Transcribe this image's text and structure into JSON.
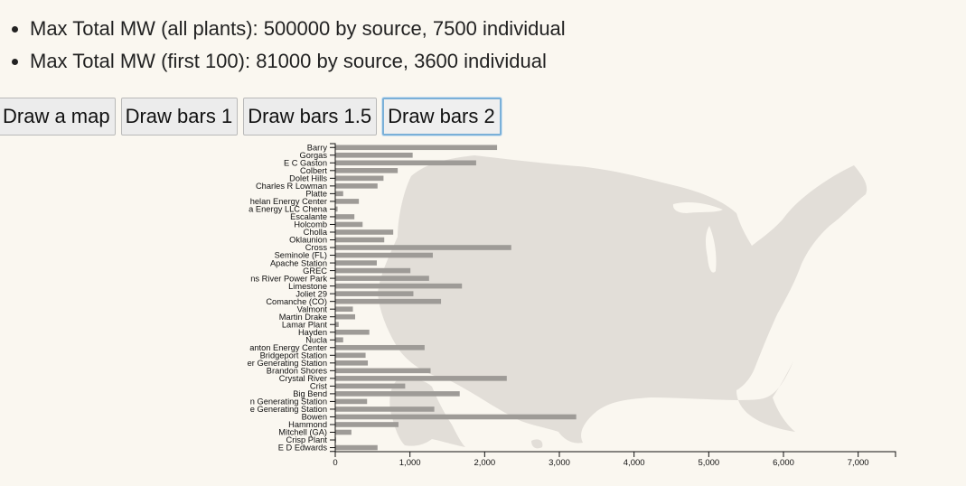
{
  "stats": [
    "Max Total MW (all plants): 500000 by source, 7500 individual",
    "Max Total MW (first 100): 81000 by source, 3600 individual"
  ],
  "buttons": [
    {
      "label": "Draw a map",
      "active": false
    },
    {
      "label": "Draw bars 1",
      "active": false
    },
    {
      "label": "Draw bars 1.5",
      "active": false
    },
    {
      "label": "Draw bars 2",
      "active": true
    }
  ],
  "map": {
    "fill_color": "#e2ded8"
  },
  "chart_data": {
    "type": "bar",
    "orientation": "horizontal",
    "bar_color": "#9e9b97",
    "xlim": [
      0,
      7500
    ],
    "xticks": [
      0,
      1000,
      2000,
      3000,
      4000,
      5000,
      6000,
      7000
    ],
    "xtick_labels": [
      "0",
      "1,000",
      "2,000",
      "3,000",
      "4,000",
      "5,000",
      "6,000",
      "7,000"
    ],
    "categories": [
      "Barry",
      "Gorgas",
      "E C Gaston",
      "Colbert",
      "Dolet Hills",
      "Charles R Lowman",
      "Platte",
      "Chelan Energy Center",
      "Aurora Energy LLC Chena",
      "Escalante",
      "Holcomb",
      "Cholla",
      "Oklaunion",
      "Cross",
      "Seminole (FL)",
      "Apache Station",
      "GREC",
      "Wisconsin River Power Park",
      "Limestone",
      "Joliet 29",
      "Comanche (CO)",
      "Valmont",
      "Martin Drake",
      "Lamar Plant",
      "Hayden",
      "Nucla",
      "Scranton Energy Center",
      "Bridgeport Station",
      "Killen Generating Station",
      "Brandon Shores",
      "Crystal River",
      "Crist",
      "Big Bend",
      "Nelson Generating Station",
      "Clifton Generating Station",
      "Bowen",
      "Hammond",
      "Mitchell (GA)",
      "Crisp Plant",
      "E D Edwards"
    ],
    "tick_labels": [
      "Barry",
      "Gorgas",
      "E C Gaston",
      "Colbert",
      "Dolet Hills",
      "Charles R Lowman",
      "Platte",
      "helan Energy Center",
      "a Energy LLC Chena",
      "Escalante",
      "Holcomb",
      "Cholla",
      "Oklaunion",
      "Cross",
      "Seminole (FL)",
      "Apache Station",
      "GREC",
      "ns River Power Park",
      "Limestone",
      "Joliet 29",
      "Comanche (CO)",
      "Valmont",
      "Martin Drake",
      "Lamar Plant",
      "Hayden",
      "Nucla",
      "anton Energy Center",
      "Bridgeport Station",
      "er Generating Station",
      "Brandon Shores",
      "Crystal River",
      "Crist",
      "Big Bend",
      "n Generating Station",
      "e Generating Station",
      "Bowen",
      "Hammond",
      "Mitchell (GA)",
      "Crisp Plant",
      "E D Edwards"
    ],
    "values": [
      2160,
      1030,
      1880,
      830,
      640,
      560,
      100,
      310,
      25,
      250,
      360,
      770,
      650,
      2350,
      1300,
      550,
      1000,
      1250,
      1690,
      1040,
      1410,
      230,
      260,
      40,
      450,
      100,
      1190,
      400,
      430,
      1270,
      2290,
      930,
      1660,
      420,
      1320,
      3220,
      840,
      210,
      5,
      560
    ]
  }
}
